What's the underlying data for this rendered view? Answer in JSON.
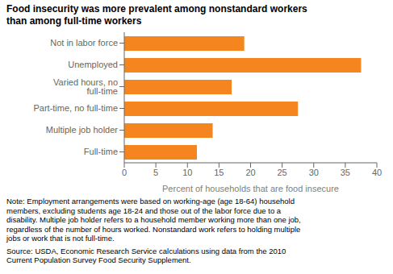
{
  "chart_data": {
    "type": "bar",
    "orientation": "horizontal",
    "title": "Food insecurity was more prevalent among nonstandard workers\nthan among full-time workers",
    "categories": [
      "Full-time",
      "Multiple job holder",
      "Part-time, no full-time",
      "Varied hours, no full-time",
      "Unemployed",
      "Not in labor force"
    ],
    "values": [
      11.5,
      14.0,
      27.5,
      17.0,
      37.5,
      19.0
    ],
    "color": "#F5861F",
    "xlabel": "Percent of households that are food insecure",
    "xlim": [
      0,
      40
    ],
    "xticks": [
      0,
      5,
      10,
      15,
      20,
      25,
      30,
      35,
      40
    ],
    "grid": false,
    "annotations": [
      "Note: Employment arrangements were based on working-age (age 18-64) household\nmembers, excluding students age 18-24 and those out of the labor force due to a\ndisability. Multiple job holder refers to a household member working more than one job,\nregardless of the number of hours worked. Nonstandard work refers to holding multiple\njobs or work that is not full-time.",
      "Source: USDA, Economic Research Service calculations using data from the 2010\nCurrent Population Survey Food Security Supplement."
    ]
  }
}
